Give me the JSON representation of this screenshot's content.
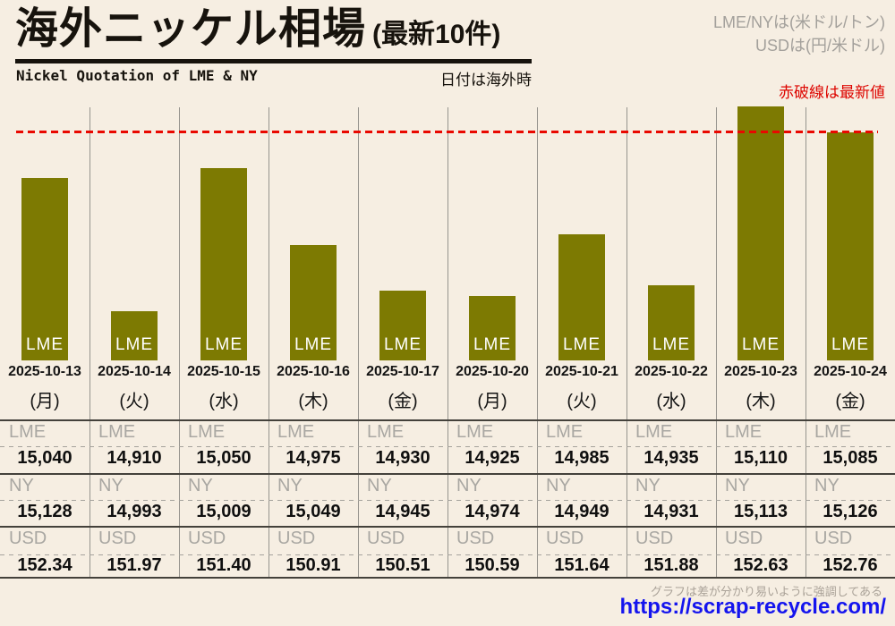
{
  "header": {
    "title": "海外ニッケル相場",
    "title_suffix": "(最新10件)",
    "subtitle_en": "Nickel Quotation of LME & NY",
    "date_note": "日付は海外時",
    "unit_note_1": "LME/NYは(米ドル/トン)",
    "unit_note_2": "USDは(円/米ドル)",
    "red_note": "赤破線は最新値"
  },
  "footer": {
    "note": "グラフは差が分かり易いように強調してある",
    "url": "https://scrap-recycle.com/"
  },
  "colors": {
    "background": "#f6eee2",
    "bar": "#7d7a02",
    "red_line": "#e90800",
    "gray_text": "#a3a09b",
    "url_blue": "#1414ee"
  },
  "chart_data": {
    "type": "bar",
    "title": "海外ニッケル相場(最新10件)",
    "bar_label": "LME",
    "categories": [
      "2025-10-13",
      "2025-10-14",
      "2025-10-15",
      "2025-10-16",
      "2025-10-17",
      "2025-10-20",
      "2025-10-21",
      "2025-10-22",
      "2025-10-23",
      "2025-10-24"
    ],
    "weekdays": [
      "(月)",
      "(火)",
      "(水)",
      "(木)",
      "(金)",
      "(月)",
      "(火)",
      "(水)",
      "(木)",
      "(金)"
    ],
    "row_labels": [
      "LME",
      "NY",
      "USD"
    ],
    "series": [
      {
        "name": "LME",
        "unit": "米ドル/トン",
        "values": [
          15040,
          14910,
          15050,
          14975,
          14930,
          14925,
          14985,
          14935,
          15110,
          15085
        ]
      },
      {
        "name": "NY",
        "unit": "米ドル/トン",
        "values": [
          15128,
          14993,
          15009,
          15049,
          14945,
          14974,
          14949,
          14931,
          15113,
          15126
        ]
      },
      {
        "name": "USD",
        "unit": "円/米ドル",
        "values": [
          152.34,
          151.97,
          151.4,
          150.91,
          150.51,
          150.59,
          151.64,
          151.88,
          152.63,
          152.76
        ]
      }
    ],
    "display": {
      "lme": [
        "15,040",
        "14,910",
        "15,050",
        "14,975",
        "14,930",
        "14,925",
        "14,985",
        "14,935",
        "15,110",
        "15,085"
      ],
      "ny": [
        "15,128",
        "14,993",
        "15,009",
        "15,049",
        "14,945",
        "14,974",
        "14,949",
        "14,931",
        "15,113",
        "15,126"
      ],
      "usd": [
        "152.34",
        "151.97",
        "151.40",
        "150.91",
        "150.51",
        "150.59",
        "151.64",
        "151.88",
        "152.63",
        "152.76"
      ]
    },
    "latest_line_value": 15085,
    "emphasized_scale": true,
    "legend_position": "none",
    "grid": "vertical-column-separators"
  }
}
